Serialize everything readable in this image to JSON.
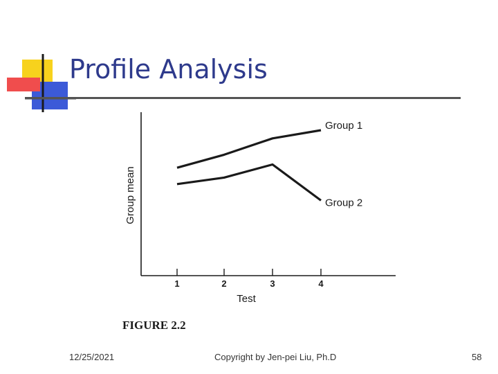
{
  "slide": {
    "title": "Profile Analysis",
    "footer_date": "12/25/2021",
    "footer_copyright": "Copyright by Jen-pei Liu, Ph.D",
    "page_number": "58"
  },
  "colors": {
    "title": "#2e3a8c",
    "rule": "#545454",
    "logo_yellow": "#f7d21d",
    "logo_red": "#f04d4d",
    "logo_blue": "#3c5ad8",
    "ink": "#1a1a1a"
  },
  "chart_data": {
    "type": "line",
    "figure_caption": "FIGURE 2.2",
    "xlabel": "Test",
    "ylabel": "Group mean",
    "x": [
      "1",
      "2",
      "3",
      "4"
    ],
    "series": [
      {
        "name": "Group 1",
        "values": [
          6.6,
          7.4,
          8.4,
          8.9
        ]
      },
      {
        "name": "Group 2",
        "values": [
          5.6,
          6.0,
          6.8,
          4.6
        ]
      }
    ],
    "ylim": [
      0,
      10
    ],
    "y_ticks_shown": false,
    "grid": false,
    "legend": "direct labels at line ends"
  }
}
